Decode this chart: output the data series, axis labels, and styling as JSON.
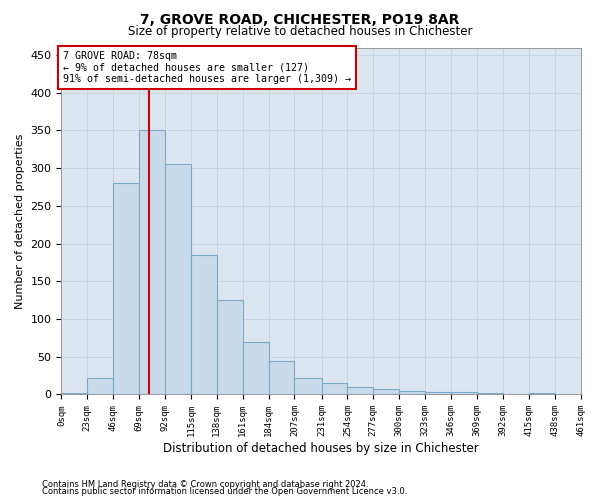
{
  "title": "7, GROVE ROAD, CHICHESTER, PO19 8AR",
  "subtitle": "Size of property relative to detached houses in Chichester",
  "xlabel": "Distribution of detached houses by size in Chichester",
  "ylabel": "Number of detached properties",
  "annotation_title": "7 GROVE ROAD: 78sqm",
  "annotation_line1": "← 9% of detached houses are smaller (127)",
  "annotation_line2": "91% of semi-detached houses are larger (1,309) →",
  "property_size": 78,
  "footnote1": "Contains HM Land Registry data © Crown copyright and database right 2024.",
  "footnote2": "Contains public sector information licensed under the Open Government Licence v3.0.",
  "bar_color": "#c9daea",
  "bar_edge_color": "#7aaac8",
  "annotation_box_color": "#ffffff",
  "annotation_box_edge": "#cc0000",
  "vline_color": "#cc0000",
  "grid_color": "#c8d4e4",
  "bg_color": "#dce6f0",
  "bin_edges": [
    0,
    23,
    46,
    69,
    92,
    115,
    138,
    161,
    184,
    207,
    231,
    254,
    277,
    300,
    323,
    346,
    369,
    392,
    415,
    438,
    461
  ],
  "bin_labels": [
    "0sqm",
    "23sqm",
    "46sqm",
    "69sqm",
    "92sqm",
    "115sqm",
    "138sqm",
    "161sqm",
    "184sqm",
    "207sqm",
    "231sqm",
    "254sqm",
    "277sqm",
    "300sqm",
    "323sqm",
    "346sqm",
    "369sqm",
    "392sqm",
    "415sqm",
    "438sqm",
    "461sqm"
  ],
  "counts": [
    2,
    22,
    280,
    350,
    305,
    185,
    125,
    70,
    45,
    22,
    15,
    10,
    7,
    5,
    3,
    3,
    2,
    0,
    2,
    1
  ],
  "ylim": [
    0,
    460
  ],
  "yticks": [
    0,
    50,
    100,
    150,
    200,
    250,
    300,
    350,
    400,
    450
  ]
}
